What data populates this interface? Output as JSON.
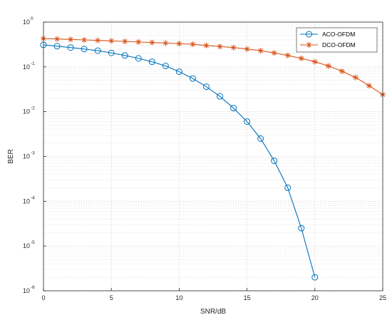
{
  "chart_data": {
    "type": "line",
    "title": "",
    "xlabel": "SNR/dB",
    "ylabel": "BER",
    "xlim": [
      0,
      25
    ],
    "ylim": [
      1e-06,
      1
    ],
    "yscale": "log",
    "grid": true,
    "legend_position": "top-right",
    "x_ticks": [
      "0",
      "5",
      "10",
      "15",
      "20",
      "25"
    ],
    "y_ticks": [
      {
        "base": "10",
        "exp": "0",
        "value": 1
      },
      {
        "base": "10",
        "exp": "-1",
        "value": 0.1
      },
      {
        "base": "10",
        "exp": "-2",
        "value": 0.01
      },
      {
        "base": "10",
        "exp": "-3",
        "value": 0.001
      },
      {
        "base": "10",
        "exp": "-4",
        "value": 0.0001
      },
      {
        "base": "10",
        "exp": "-5",
        "value": 1e-05
      },
      {
        "base": "10",
        "exp": "-6",
        "value": 1e-06
      }
    ],
    "series": [
      {
        "name": "ACO-OFDM",
        "color": "#0072BD",
        "marker": "circle",
        "x": [
          0,
          1,
          2,
          3,
          4,
          5,
          6,
          7,
          8,
          9,
          10,
          11,
          12,
          13,
          14,
          15,
          16,
          17,
          18,
          19,
          20
        ],
        "y": [
          0.31,
          0.29,
          0.27,
          0.25,
          0.23,
          0.205,
          0.18,
          0.155,
          0.13,
          0.105,
          0.078,
          0.055,
          0.036,
          0.022,
          0.012,
          0.006,
          0.0025,
          0.0008,
          0.0002,
          2.5e-05,
          2e-06
        ]
      },
      {
        "name": "DCO-OFDM",
        "color": "#D95319",
        "marker": "asterisk",
        "x": [
          0,
          1,
          2,
          3,
          4,
          5,
          6,
          7,
          8,
          9,
          10,
          11,
          12,
          13,
          14,
          15,
          16,
          17,
          18,
          19,
          20,
          21,
          22,
          23,
          24,
          25
        ],
        "y": [
          0.43,
          0.42,
          0.41,
          0.4,
          0.39,
          0.38,
          0.37,
          0.36,
          0.35,
          0.34,
          0.33,
          0.32,
          0.3,
          0.285,
          0.27,
          0.25,
          0.23,
          0.205,
          0.18,
          0.155,
          0.13,
          0.105,
          0.08,
          0.058,
          0.038,
          0.024
        ]
      }
    ]
  }
}
